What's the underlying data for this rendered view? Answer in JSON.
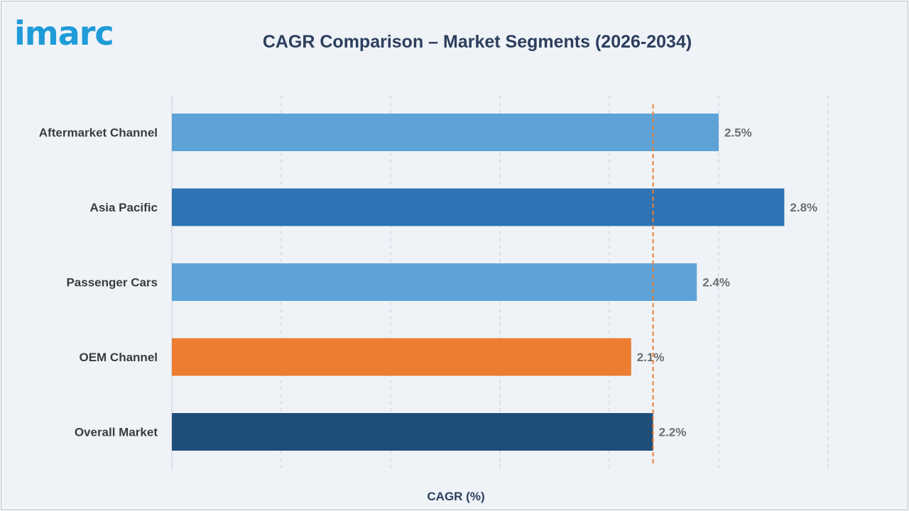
{
  "brand": {
    "logo_text": "imarc"
  },
  "chart_data": {
    "type": "bar",
    "orientation": "horizontal",
    "title": "CAGR Comparison – Market Segments (2026-2034)",
    "xlabel": "CAGR (%)",
    "ylabel": "",
    "categories": [
      "Aftermarket Channel",
      "Asia Pacific",
      "Passenger Cars",
      "OEM Channel",
      "Overall Market"
    ],
    "values": [
      2.5,
      2.8,
      2.4,
      2.1,
      2.2
    ],
    "value_labels": [
      "2.5%",
      "2.8%",
      "2.4%",
      "2.1%",
      "2.2%"
    ],
    "colors": [
      "#5ea3d7",
      "#2e74b5",
      "#5ea3d7",
      "#ed7d31",
      "#1f4e79"
    ],
    "xlim": [
      0,
      3.0
    ],
    "reference_line": {
      "value": 2.2,
      "style": "dashed",
      "color": "#ed7d31"
    },
    "grid": true,
    "legend": "none"
  }
}
